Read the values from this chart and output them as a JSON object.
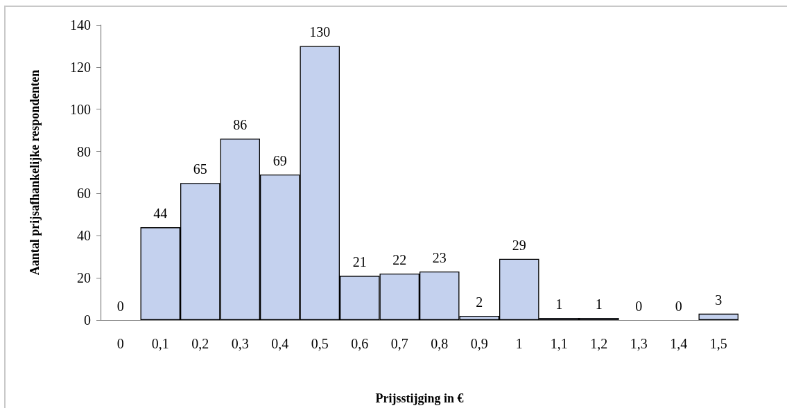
{
  "chart_data": {
    "type": "bar",
    "xlabel": "Prijsstijging in €",
    "ylabel": "Aantal prijsafhankelijke respondenten",
    "categories": [
      "0",
      "0,1",
      "0,2",
      "0,3",
      "0,4",
      "0,5",
      "0,6",
      "0,7",
      "0,8",
      "0,9",
      "1",
      "1,1",
      "1,2",
      "1,3",
      "1,4",
      "1,5"
    ],
    "values": [
      0,
      44,
      65,
      86,
      69,
      130,
      21,
      22,
      23,
      2,
      29,
      1,
      1,
      0,
      0,
      3
    ],
    "color": "#c4d1ee",
    "ylim": [
      0,
      140
    ],
    "yticks": [
      0,
      20,
      40,
      60,
      80,
      100,
      120,
      140
    ],
    "grid": false,
    "data_labels": true
  }
}
